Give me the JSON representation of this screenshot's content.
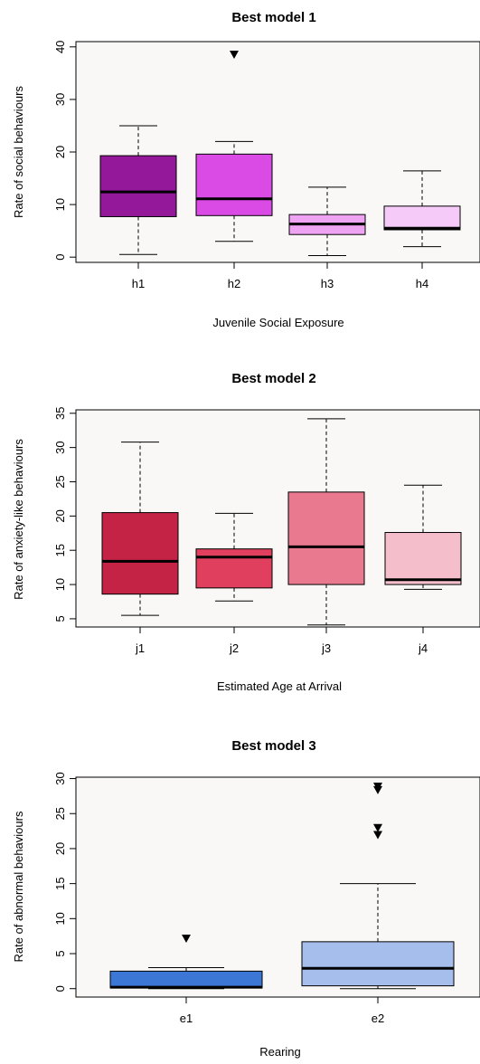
{
  "chart_data": [
    {
      "type": "box",
      "title": "Best model 1",
      "xlabel": "Juvenile Social Exposure",
      "ylabel": "Rate of social behaviours",
      "ylim": [
        -1,
        41
      ],
      "yticks": [
        0,
        10,
        20,
        30,
        40
      ],
      "categories": [
        "h1",
        "h2",
        "h3",
        "h4"
      ],
      "boxes": [
        {
          "label": "h1",
          "min": 0.5,
          "q1": 7.7,
          "median": 12.4,
          "q3": 19.3,
          "max": 25.0,
          "outliers": [],
          "color": "#94189A"
        },
        {
          "label": "h2",
          "min": 3.0,
          "q1": 7.9,
          "median": 11.1,
          "q3": 19.6,
          "max": 22.0,
          "outliers": [
            38.6
          ],
          "color": "#DA4BE6"
        },
        {
          "label": "h3",
          "min": 0.3,
          "q1": 4.3,
          "median": 6.3,
          "q3": 8.1,
          "max": 13.3,
          "outliers": [],
          "color": "#EFA3F3"
        },
        {
          "label": "h4",
          "min": 2.0,
          "q1": 5.2,
          "median": 5.5,
          "q3": 9.7,
          "max": 16.4,
          "outliers": [],
          "color": "#F6CAF8"
        }
      ]
    },
    {
      "type": "box",
      "title": "Best model 2",
      "xlabel": "Estimated Age at Arrival",
      "ylabel": "Rate of anxiety-like behaviours",
      "ylim": [
        3.8,
        35.5
      ],
      "yticks": [
        5,
        10,
        15,
        20,
        25,
        30,
        35
      ],
      "categories": [
        "j1",
        "j2",
        "j3",
        "j4"
      ],
      "boxes": [
        {
          "label": "j1",
          "min": 5.5,
          "q1": 8.6,
          "median": 13.4,
          "q3": 20.5,
          "max": 30.8,
          "outliers": [],
          "color": "#C42346"
        },
        {
          "label": "j2",
          "min": 7.6,
          "q1": 9.5,
          "median": 14.0,
          "q3": 15.2,
          "max": 20.4,
          "outliers": [],
          "color": "#E0405E"
        },
        {
          "label": "j3",
          "min": 4.1,
          "q1": 10.0,
          "median": 15.5,
          "q3": 23.5,
          "max": 34.2,
          "outliers": [],
          "color": "#E8798E"
        },
        {
          "label": "j4",
          "min": 9.3,
          "q1": 10.0,
          "median": 10.7,
          "q3": 17.6,
          "max": 24.5,
          "outliers": [],
          "color": "#F4BECB"
        }
      ]
    },
    {
      "type": "box",
      "title": "Best model 3",
      "xlabel": "Rearing",
      "ylabel": "Rate of abnormal behaviours",
      "ylim": [
        -1.2,
        30.2
      ],
      "yticks": [
        0,
        5,
        10,
        15,
        20,
        25,
        30
      ],
      "categories": [
        "e1",
        "e2"
      ],
      "boxes": [
        {
          "label": "e1",
          "min": 0.0,
          "q1": 0.1,
          "median": 0.2,
          "q3": 2.5,
          "max": 3.0,
          "outliers": [
            7.2
          ],
          "color": "#3C77D6"
        },
        {
          "label": "e2",
          "min": 0.0,
          "q1": 0.4,
          "median": 2.9,
          "q3": 6.7,
          "max": 15.0,
          "outliers": [
            22.0,
            23.0,
            28.4,
            28.9
          ],
          "color": "#A6BEEC"
        }
      ]
    }
  ]
}
